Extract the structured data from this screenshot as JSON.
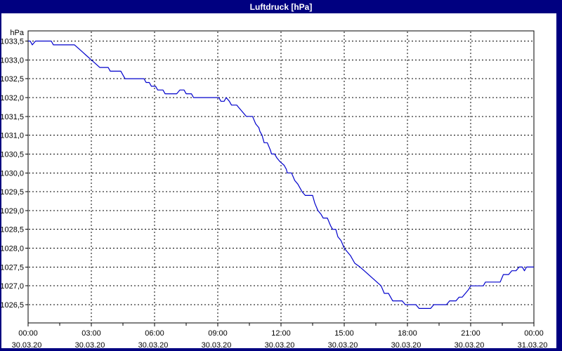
{
  "window": {
    "title": "Luftdruck [hPa]"
  },
  "colors": {
    "title_bar_bg": "#000080",
    "title_text": "#ffffff",
    "window_border": "#000080",
    "plot_bg": "#ffffff",
    "grid": "#000000",
    "axis_text": "#000000",
    "line": "#0000cc"
  },
  "chart_data": {
    "type": "line",
    "title": "Luftdruck [hPa]",
    "unit_label": "hPa",
    "grid": "dashed",
    "legend": "none",
    "x_axis": {
      "range_hours": [
        0,
        24
      ],
      "major_tick_hours": 3,
      "minor_tick_hours": 1.5,
      "tick_labels": [
        {
          "time": "00:00",
          "date": "30.03.20",
          "hour": 0
        },
        {
          "time": "03:00",
          "date": "30.03.20",
          "hour": 3
        },
        {
          "time": "06:00",
          "date": "30.03.20",
          "hour": 6
        },
        {
          "time": "09:00",
          "date": "30.03.20",
          "hour": 9
        },
        {
          "time": "12:00",
          "date": "30.03.20",
          "hour": 12
        },
        {
          "time": "15:00",
          "date": "30.03.20",
          "hour": 15
        },
        {
          "time": "18:00",
          "date": "30.03.20",
          "hour": 18
        },
        {
          "time": "21:00",
          "date": "30.03.20",
          "hour": 21
        },
        {
          "time": "00:00",
          "date": "31.03.20",
          "hour": 24
        }
      ]
    },
    "y_axis": {
      "step": 0.5,
      "tick_values": [
        1033.5,
        1033.0,
        1032.5,
        1032.0,
        1031.5,
        1031.0,
        1030.5,
        1030.0,
        1029.5,
        1029.0,
        1028.5,
        1028.0,
        1027.5,
        1027.0,
        1026.5
      ],
      "tick_labels": [
        "1033,5",
        "1033,0",
        "1032,5",
        "1032,0",
        "1031,5",
        "1031,0",
        "1030,5",
        "1030,0",
        "1029,5",
        "1029,0",
        "1028,5",
        "1028,0",
        "1027,5",
        "1027,0",
        "1026,5"
      ]
    },
    "series": [
      {
        "name": "Luftdruck",
        "color": "#0000cc",
        "points": [
          [
            0.0,
            1033.5
          ],
          [
            0.1,
            1033.5
          ],
          [
            0.2,
            1033.4
          ],
          [
            0.35,
            1033.5
          ],
          [
            1.1,
            1033.5
          ],
          [
            1.2,
            1033.4
          ],
          [
            2.2,
            1033.4
          ],
          [
            2.4,
            1033.3
          ],
          [
            2.6,
            1033.2
          ],
          [
            2.8,
            1033.1
          ],
          [
            3.0,
            1033.0
          ],
          [
            3.2,
            1032.9
          ],
          [
            3.4,
            1032.8
          ],
          [
            3.8,
            1032.8
          ],
          [
            3.9,
            1032.7
          ],
          [
            4.4,
            1032.7
          ],
          [
            4.5,
            1032.6
          ],
          [
            4.6,
            1032.5
          ],
          [
            5.5,
            1032.5
          ],
          [
            5.6,
            1032.4
          ],
          [
            5.75,
            1032.4
          ],
          [
            5.85,
            1032.3
          ],
          [
            6.05,
            1032.3
          ],
          [
            6.15,
            1032.2
          ],
          [
            6.4,
            1032.2
          ],
          [
            6.5,
            1032.1
          ],
          [
            7.05,
            1032.1
          ],
          [
            7.2,
            1032.2
          ],
          [
            7.4,
            1032.2
          ],
          [
            7.5,
            1032.1
          ],
          [
            7.75,
            1032.1
          ],
          [
            7.85,
            1032.0
          ],
          [
            9.05,
            1032.0
          ],
          [
            9.15,
            1031.9
          ],
          [
            9.3,
            1031.9
          ],
          [
            9.4,
            1032.0
          ],
          [
            9.55,
            1031.9
          ],
          [
            9.65,
            1031.8
          ],
          [
            9.9,
            1031.8
          ],
          [
            10.05,
            1031.7
          ],
          [
            10.2,
            1031.6
          ],
          [
            10.35,
            1031.5
          ],
          [
            10.65,
            1031.5
          ],
          [
            10.8,
            1031.3
          ],
          [
            10.95,
            1031.2
          ],
          [
            11.0,
            1031.1
          ],
          [
            11.1,
            1031.0
          ],
          [
            11.2,
            1030.8
          ],
          [
            11.35,
            1030.8
          ],
          [
            11.5,
            1030.6
          ],
          [
            11.55,
            1030.5
          ],
          [
            11.7,
            1030.5
          ],
          [
            11.8,
            1030.4
          ],
          [
            11.95,
            1030.3
          ],
          [
            12.15,
            1030.2
          ],
          [
            12.25,
            1030.1
          ],
          [
            12.3,
            1030.0
          ],
          [
            12.5,
            1030.0
          ],
          [
            12.65,
            1029.8
          ],
          [
            12.8,
            1029.7
          ],
          [
            13.0,
            1029.5
          ],
          [
            13.15,
            1029.4
          ],
          [
            13.5,
            1029.4
          ],
          [
            13.6,
            1029.2
          ],
          [
            13.75,
            1029.0
          ],
          [
            13.9,
            1028.9
          ],
          [
            14.0,
            1028.8
          ],
          [
            14.2,
            1028.8
          ],
          [
            14.35,
            1028.6
          ],
          [
            14.45,
            1028.5
          ],
          [
            14.6,
            1028.5
          ],
          [
            14.7,
            1028.3
          ],
          [
            14.85,
            1028.2
          ],
          [
            15.0,
            1028.0
          ],
          [
            15.15,
            1027.9
          ],
          [
            15.3,
            1027.8
          ],
          [
            15.5,
            1027.6
          ],
          [
            15.75,
            1027.5
          ],
          [
            15.95,
            1027.4
          ],
          [
            16.15,
            1027.3
          ],
          [
            16.35,
            1027.2
          ],
          [
            16.55,
            1027.1
          ],
          [
            16.75,
            1027.0
          ],
          [
            16.9,
            1026.8
          ],
          [
            17.1,
            1026.8
          ],
          [
            17.3,
            1026.6
          ],
          [
            17.75,
            1026.6
          ],
          [
            17.9,
            1026.5
          ],
          [
            18.4,
            1026.5
          ],
          [
            18.55,
            1026.4
          ],
          [
            19.1,
            1026.4
          ],
          [
            19.25,
            1026.5
          ],
          [
            19.85,
            1026.5
          ],
          [
            20.0,
            1026.6
          ],
          [
            20.3,
            1026.6
          ],
          [
            20.45,
            1026.7
          ],
          [
            20.6,
            1026.7
          ],
          [
            20.75,
            1026.8
          ],
          [
            20.9,
            1026.9
          ],
          [
            21.0,
            1027.0
          ],
          [
            21.6,
            1027.0
          ],
          [
            21.7,
            1027.1
          ],
          [
            22.4,
            1027.1
          ],
          [
            22.55,
            1027.3
          ],
          [
            22.8,
            1027.3
          ],
          [
            22.95,
            1027.4
          ],
          [
            23.15,
            1027.4
          ],
          [
            23.3,
            1027.5
          ],
          [
            23.45,
            1027.5
          ],
          [
            23.55,
            1027.4
          ],
          [
            23.65,
            1027.5
          ],
          [
            24.0,
            1027.5
          ]
        ]
      }
    ]
  }
}
